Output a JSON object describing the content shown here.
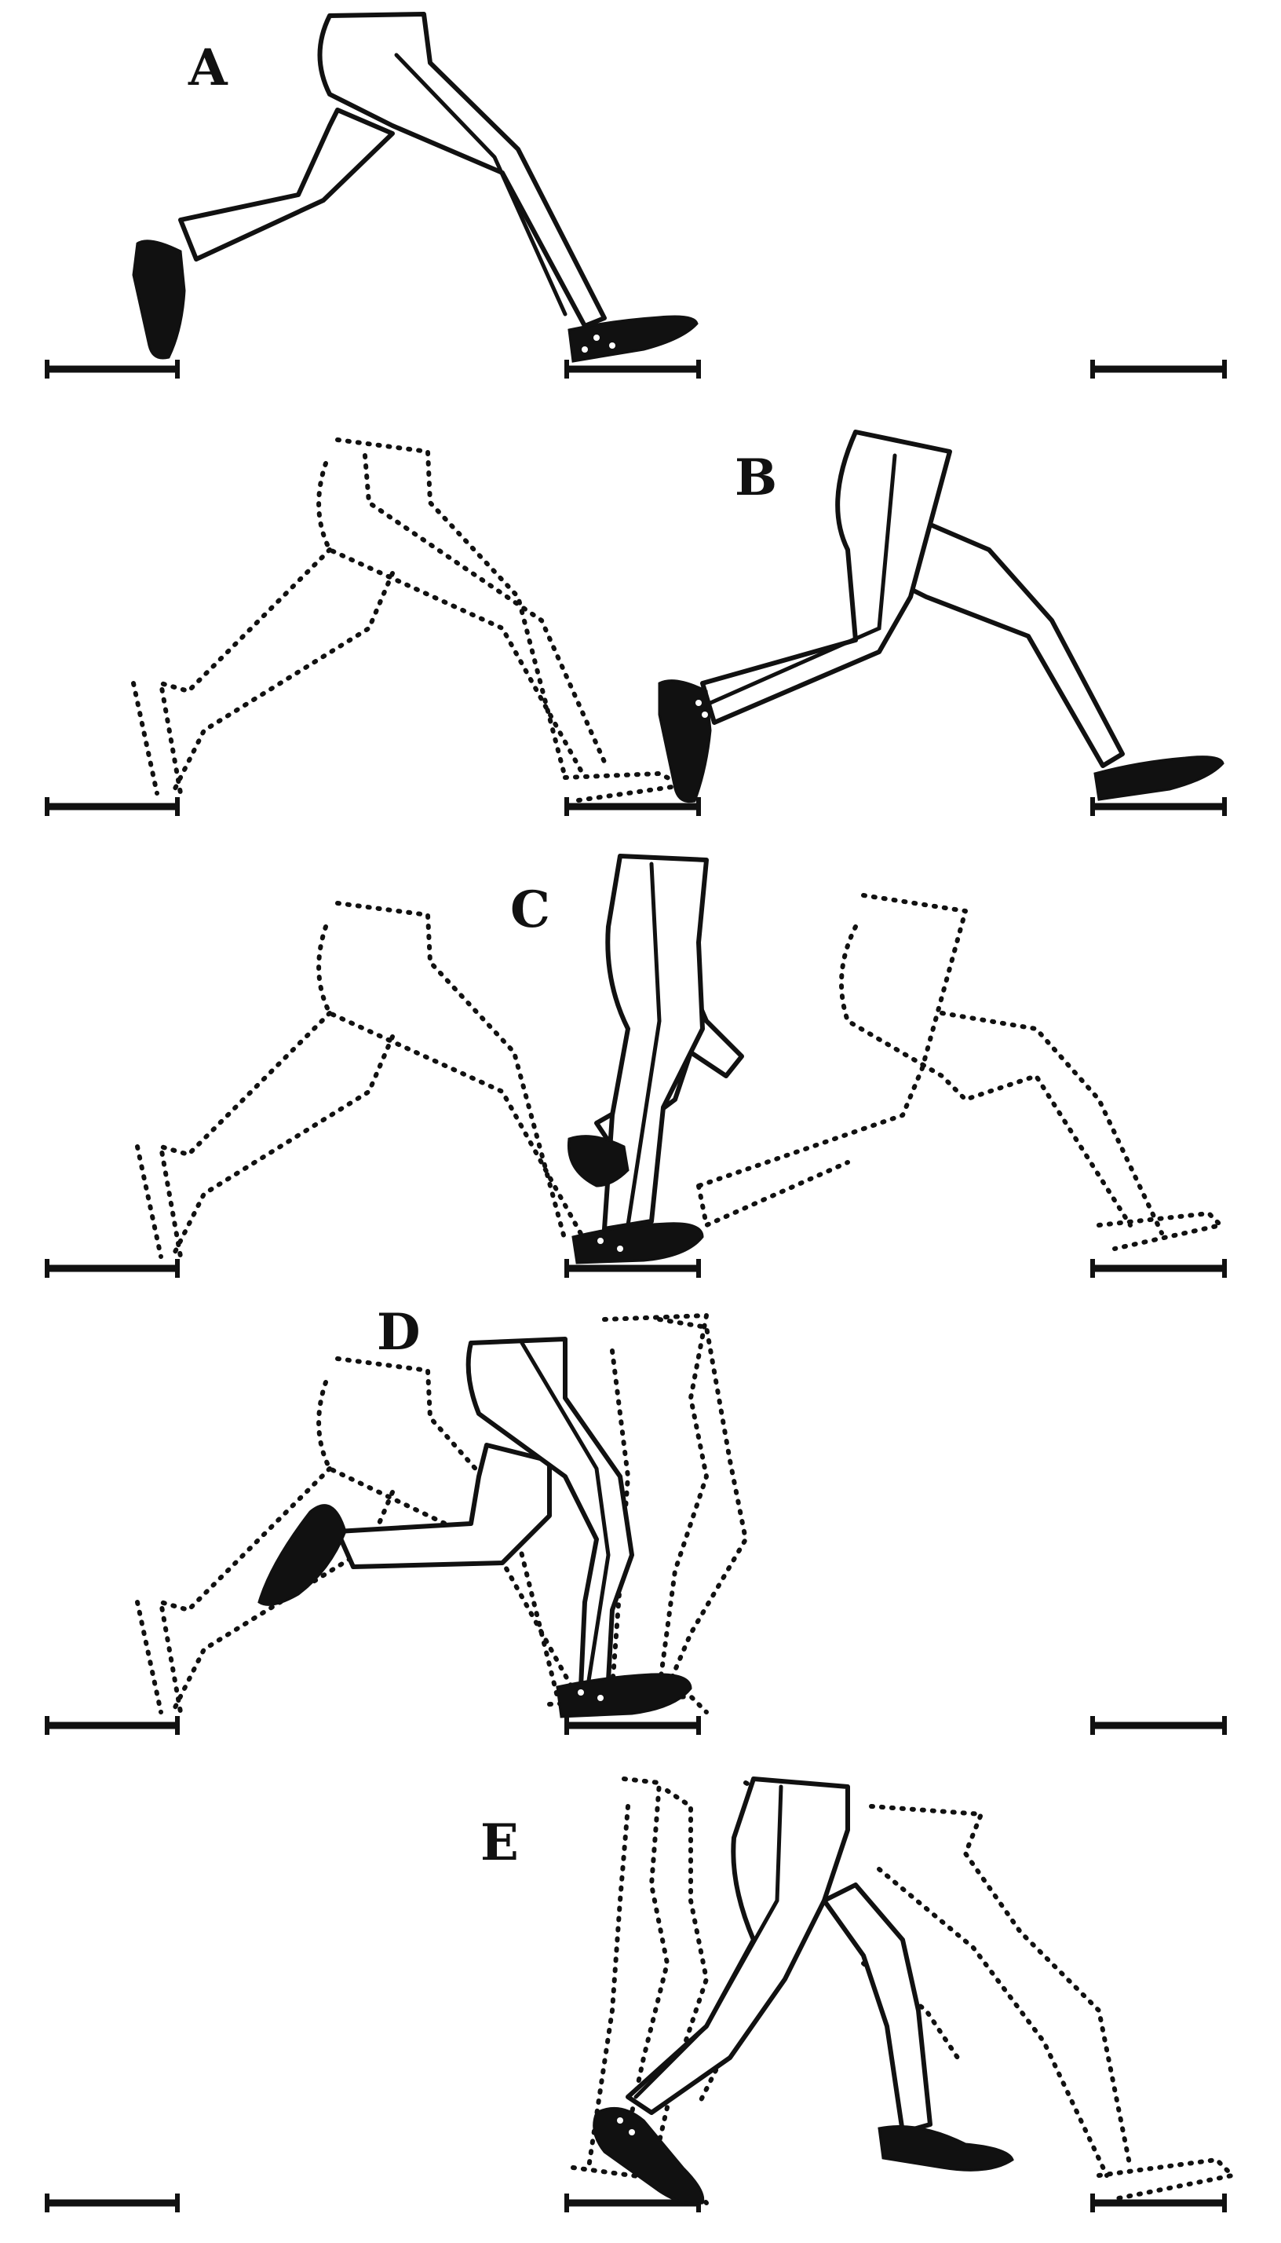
{
  "figure": {
    "panels": [
      {
        "id": "A",
        "label": "A"
      },
      {
        "id": "B",
        "label": "B"
      },
      {
        "id": "C",
        "label": "C"
      },
      {
        "id": "D",
        "label": "D"
      },
      {
        "id": "E",
        "label": "E"
      }
    ]
  }
}
